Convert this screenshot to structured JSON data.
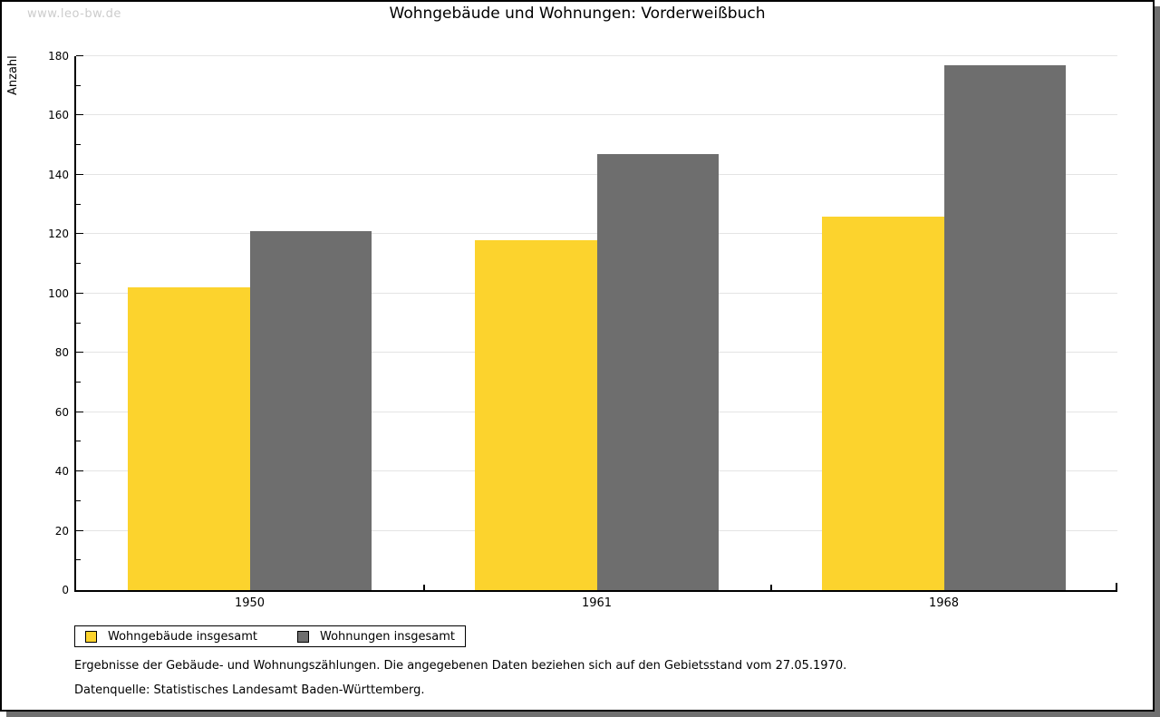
{
  "watermark": "www.leo-bw.de",
  "chart_data": {
    "type": "bar",
    "title": "Wohngebäude und Wohnungen: Vorderweißbuch",
    "ylabel": "Anzahl",
    "xlabel": "",
    "categories": [
      "1950",
      "1961",
      "1968"
    ],
    "series": [
      {
        "name": "Wohngebäude insgesamt",
        "color": "#fcd32d",
        "values": [
          102,
          118,
          126
        ]
      },
      {
        "name": "Wohnungen insgesamt",
        "color": "#6e6e6e",
        "values": [
          121,
          147,
          177
        ]
      }
    ],
    "ylim": [
      0,
      180
    ],
    "ytick_step": 20,
    "yminor_step": 10,
    "grid": true,
    "gridline_color": "#e4e4e4",
    "legend_position": "bottom-left"
  },
  "footer": {
    "line1": "Ergebnisse der Gebäude- und Wohnungszählungen. Die angegebenen Daten beziehen sich auf den Gebietsstand vom 27.05.1970.",
    "line2": "Datenquelle: Statistisches Landesamt Baden-Württemberg."
  }
}
